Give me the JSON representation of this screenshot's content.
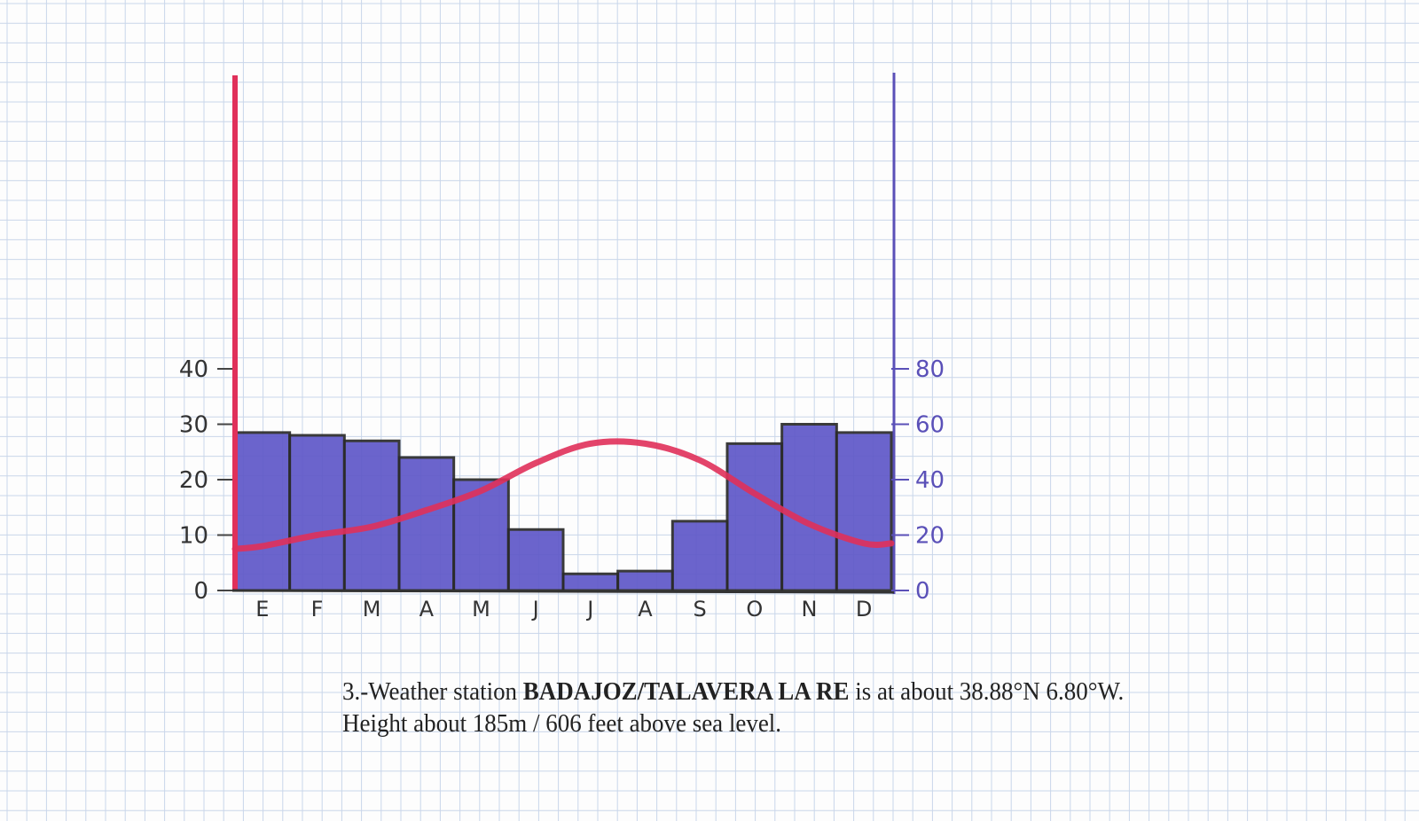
{
  "chart_data": {
    "type": "bar+line",
    "title": "",
    "categories": [
      "E",
      "F",
      "M",
      "A",
      "M",
      "J",
      "J",
      "A",
      "S",
      "O",
      "N",
      "D"
    ],
    "left_axis": {
      "ticks": [
        "0",
        "10",
        "20",
        "30",
        "40"
      ],
      "range": [
        0,
        40
      ],
      "color": "#e0305a"
    },
    "right_axis": {
      "ticks": [
        "0",
        "20",
        "40",
        "60",
        "80"
      ],
      "range": [
        0,
        80
      ],
      "color": "#5a50b8"
    },
    "series": [
      {
        "type": "bar",
        "axis": "right",
        "color": "#5f58c8",
        "values": [
          57,
          56,
          54,
          48,
          40,
          22,
          6,
          7,
          25,
          53,
          60,
          57
        ]
      },
      {
        "type": "line",
        "axis": "left",
        "color": "#e0305a",
        "values": [
          8,
          10,
          11.5,
          14.5,
          18,
          23,
          26.5,
          26.5,
          23.5,
          17.5,
          12,
          8.5
        ]
      }
    ],
    "grid": true
  },
  "caption": {
    "prefix": "3.-Weather station ",
    "station": "BADAJOZ/TALAVERA LA RE",
    "suffix": " is at about 38.88°N 6.80°W.",
    "line2": "Height about 185m / 606 feet above sea level."
  }
}
